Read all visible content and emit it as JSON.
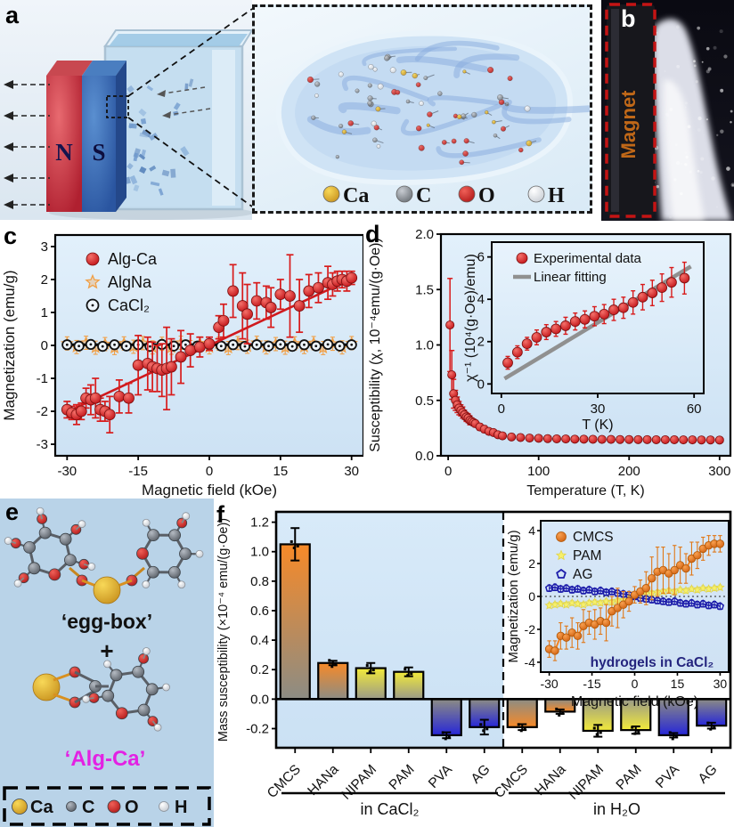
{
  "panels": {
    "a": "a",
    "b": "b",
    "c": "c",
    "d": "d",
    "e": "e",
    "f": "f"
  },
  "colors": {
    "red": "#e02020",
    "orange": "#f5831f",
    "star_orange": "#f0a048",
    "yellow": "#f0e83a",
    "pale_yellow": "#f6f06a",
    "blue": "#2a2ad8",
    "navy": "#1c1caa",
    "gray": "#8c8c84",
    "gold": "#e8b92e",
    "magenta": "#e321e3",
    "plot_bg_top": "#e2f0fb",
    "plot_bg_bottom": "#cde2f4",
    "panel_e_bg": "#b9d3e8",
    "magnet_text": "#c06818",
    "fit_gray": "#909090"
  },
  "panel_a": {
    "magnet_n": "N",
    "magnet_s": "S",
    "legend": [
      {
        "label": "Ca",
        "color": "#e8b92e"
      },
      {
        "label": "C",
        "color": "#8a8f96"
      },
      {
        "label": "O",
        "color": "#d42525"
      },
      {
        "label": "H",
        "color": "#ffffff"
      }
    ]
  },
  "panel_b": {
    "magnet_label": "Magnet"
  },
  "panel_e": {
    "egg_box": "‘egg-box’",
    "plus": "+",
    "alg_ca": "‘Alg-Ca’",
    "legend": [
      {
        "label": "Ca",
        "color": "#e8b92e"
      },
      {
        "label": "C",
        "color": "#8a8f96"
      },
      {
        "label": "O",
        "color": "#d42525"
      },
      {
        "label": "H",
        "color": "#ffffff"
      }
    ]
  },
  "chart_data": [
    {
      "id": "c",
      "type": "scatter",
      "xlabel": "Magnetic field (kOe)",
      "ylabel": "Magnetization (emu/g)",
      "xlim": [
        -32.5,
        32.5
      ],
      "ylim": [
        -3.35,
        3.35
      ],
      "xticks": [
        "-30",
        "-15",
        "0",
        "15",
        "30"
      ],
      "yticks": [
        "-3",
        "-2",
        "-1",
        "0",
        "1",
        "2",
        "3"
      ],
      "legend_position": "top-left",
      "series": [
        {
          "name": "Alg-Ca",
          "marker": "sphere",
          "color": "#e02020",
          "x": [
            -30,
            -29,
            -28,
            -27,
            -26,
            -25,
            -24,
            -23,
            -22,
            -21,
            -19,
            -17,
            -15,
            -13,
            -12,
            -11,
            -10,
            -9,
            -8,
            -6,
            -4,
            -2,
            0,
            2,
            3,
            5,
            7,
            8,
            10,
            12,
            13,
            15,
            17,
            19,
            21,
            23,
            25,
            26,
            27,
            28,
            29,
            30
          ],
          "y": [
            -1.95,
            -2.05,
            -2.1,
            -2.0,
            -1.6,
            -1.65,
            -1.6,
            -1.95,
            -2.0,
            -2.1,
            -1.55,
            -1.6,
            -0.6,
            -0.55,
            -0.65,
            -0.7,
            -0.75,
            -0.7,
            -0.65,
            -0.35,
            -0.15,
            -0.05,
            0.05,
            0.55,
            0.75,
            1.65,
            1.2,
            0.95,
            1.35,
            1.3,
            1.15,
            1.55,
            1.5,
            1.2,
            1.65,
            1.75,
            1.9,
            1.85,
            1.95,
            2.0,
            1.95,
            2.05
          ],
          "yerr": [
            0.25,
            0.2,
            0.3,
            0.25,
            0.3,
            0.45,
            0.6,
            0.35,
            0.3,
            0.55,
            0.5,
            0.45,
            0.9,
            0.8,
            0.75,
            0.7,
            0.8,
            1.25,
            0.85,
            0.8,
            0.5,
            0.3,
            0.2,
            0.35,
            0.5,
            0.8,
            1.0,
            0.9,
            0.55,
            0.5,
            0.6,
            0.45,
            1.25,
            0.8,
            0.5,
            0.45,
            0.5,
            0.35,
            0.3,
            0.25,
            0.3,
            0.2
          ],
          "fit": {
            "x": [
              -30,
              30
            ],
            "y": [
              -2.02,
              2.02
            ]
          }
        },
        {
          "name": "AlgNa",
          "marker": "star",
          "color": "#f0a048",
          "yerr_const": 0.2,
          "x": [
            -30,
            -28,
            -26,
            -24,
            -22,
            -20,
            -18,
            -16,
            -14,
            -12,
            -10,
            -8,
            -6,
            -4,
            -2,
            0,
            2,
            4,
            6,
            8,
            10,
            12,
            14,
            16,
            18,
            20,
            22,
            24,
            26,
            28,
            30
          ],
          "y": [
            0.06,
            -0.05,
            0.08,
            -0.07,
            0.04,
            -0.08,
            0.06,
            -0.04,
            0.07,
            -0.06,
            0.05,
            -0.07,
            0.08,
            -0.05,
            0.06,
            -0.06,
            0.05,
            -0.08,
            0.07,
            -0.04,
            0.08,
            -0.06,
            0.04,
            -0.07,
            0.06,
            -0.05,
            0.07,
            -0.08,
            0.05,
            -0.06,
            0.07
          ]
        },
        {
          "name": "CaCl₂",
          "marker": "circle-dot",
          "color": "#111111",
          "yerr_const": 0.12,
          "line_y": 0.02,
          "x": [
            -30,
            -27.5,
            -25,
            -22.5,
            -20,
            -17.5,
            -15,
            -12.5,
            -10,
            -7.5,
            -5,
            -2.5,
            0,
            2.5,
            5,
            7.5,
            10,
            12.5,
            15,
            17.5,
            20,
            22.5,
            25,
            27.5,
            30
          ],
          "y": [
            0.02,
            -0.02,
            0.03,
            -0.03,
            0.02,
            -0.02,
            0.02,
            -0.03,
            0.03,
            -0.02,
            0.02,
            -0.02,
            0.03,
            -0.02,
            0.02,
            -0.03,
            0.02,
            -0.02,
            0.03,
            -0.03,
            0.02,
            -0.02,
            0.03,
            -0.02,
            0.02
          ]
        }
      ]
    },
    {
      "id": "d",
      "type": "scatter",
      "xlabel": "Temperature (T, K)",
      "ylabel": "Susceptibility (χ, 10⁻⁴emu/(g·Oe))",
      "xlim": [
        -8,
        312
      ],
      "ylim": [
        0,
        2.0
      ],
      "xticks": [
        "0",
        "100",
        "200",
        "300"
      ],
      "yticks": [
        "0.0",
        "0.5",
        "1.0",
        "1.5",
        "2.0"
      ],
      "series": [
        {
          "name": "susceptibility",
          "marker": "sphere",
          "color": "#e02020",
          "x": [
            2,
            4,
            6,
            8,
            10,
            12,
            14,
            16,
            18,
            20,
            22,
            24,
            26,
            28,
            30,
            35,
            40,
            45,
            50,
            55,
            60,
            70,
            80,
            90,
            100,
            110,
            120,
            130,
            140,
            150,
            160,
            170,
            180,
            190,
            200,
            210,
            220,
            230,
            240,
            250,
            260,
            270,
            280,
            290,
            300
          ],
          "y": [
            1.18,
            0.73,
            0.56,
            0.5,
            0.46,
            0.43,
            0.41,
            0.39,
            0.37,
            0.35,
            0.34,
            0.32,
            0.31,
            0.3,
            0.29,
            0.26,
            0.24,
            0.22,
            0.21,
            0.19,
            0.18,
            0.17,
            0.165,
            0.16,
            0.158,
            0.155,
            0.153,
            0.152,
            0.15,
            0.15,
            0.149,
            0.148,
            0.148,
            0.147,
            0.147,
            0.146,
            0.146,
            0.145,
            0.145,
            0.145,
            0.144,
            0.144,
            0.143,
            0.143,
            0.142
          ],
          "yerr": [
            0.42,
            0.22,
            0.13,
            0.09,
            0.07,
            0.06,
            0.05,
            0.05,
            0.04,
            0.04,
            0.04,
            0.04,
            0.03,
            0.03,
            0.03,
            0.03,
            0.03,
            0.02,
            0.02,
            0.02,
            0.02,
            0.02,
            0.02,
            0.02,
            0.02,
            0.02,
            0.02,
            0.02,
            0.02,
            0.02,
            0.02,
            0.02,
            0.02,
            0.02,
            0.02,
            0.02,
            0.02,
            0.02,
            0.02,
            0.02,
            0.02,
            0.02,
            0.02,
            0.02,
            0.02
          ]
        }
      ]
    },
    {
      "id": "d-inset",
      "type": "scatter",
      "xlabel": "T (K)",
      "ylabel": "χ⁻¹ (10⁴(g·Oe)/emu)",
      "xlim": [
        -3,
        63
      ],
      "ylim": [
        -0.45,
        6.7
      ],
      "xticks": [
        "0",
        "30",
        "60"
      ],
      "yticks": [
        "0",
        "2",
        "4",
        "6"
      ],
      "legend": [
        {
          "label": "Experimental data",
          "marker": "sphere",
          "color": "#e02020"
        },
        {
          "label": "Linear fitting",
          "marker": "line",
          "color": "#909090"
        }
      ],
      "series": [
        {
          "name": "Experimental data",
          "marker": "sphere",
          "color": "#e02020",
          "x": [
            2,
            5,
            8,
            11,
            14,
            17,
            20,
            23,
            26,
            29,
            32,
            35,
            38,
            41,
            44,
            47,
            50,
            53,
            57
          ],
          "y": [
            1.0,
            1.5,
            1.9,
            2.2,
            2.45,
            2.6,
            2.75,
            2.95,
            3.05,
            3.2,
            3.3,
            3.5,
            3.6,
            3.85,
            4.1,
            4.3,
            4.55,
            4.8,
            5.0
          ],
          "yerr": [
            0.3,
            0.3,
            0.3,
            0.35,
            0.35,
            0.35,
            0.4,
            0.4,
            0.4,
            0.45,
            0.45,
            0.5,
            0.5,
            0.55,
            0.6,
            0.6,
            0.65,
            0.7,
            0.75
          ]
        },
        {
          "name": "Linear fitting",
          "marker": "none",
          "color": "#909090",
          "fit": {
            "x": [
              1,
              59
            ],
            "y": [
              0.25,
              5.55
            ]
          }
        }
      ]
    },
    {
      "id": "f",
      "type": "bar",
      "ylabel": "Mass susceptibility (×10⁻⁴ emu/(g·Oe))",
      "ylim": [
        -0.33,
        1.27
      ],
      "yticks": [
        "-0.2",
        "0.0",
        "0.2",
        "0.4",
        "0.6",
        "0.8",
        "1.0",
        "1.2"
      ],
      "categories": [
        "CMCS",
        "HANa",
        "NIPAM",
        "PAM",
        "PVA",
        "AG",
        "CMCS",
        "HANa",
        "NIPAM",
        "PAM",
        "PVA",
        "AG"
      ],
      "values": [
        1.05,
        0.245,
        0.21,
        0.185,
        -0.245,
        -0.19,
        -0.19,
        -0.085,
        -0.215,
        -0.21,
        -0.245,
        -0.18
      ],
      "errors": [
        0.11,
        0.015,
        0.035,
        0.03,
        0.02,
        0.05,
        0.02,
        0.015,
        0.04,
        0.025,
        0.015,
        0.02
      ],
      "bar_colors": [
        "orange",
        "orange",
        "yellow",
        "yellow",
        "blue",
        "blue",
        "orange",
        "orange",
        "yellow",
        "yellow",
        "blue",
        "blue"
      ],
      "groups": [
        {
          "label": "in CaCl₂",
          "from": 0,
          "to": 5
        },
        {
          "label": "in H₂O",
          "from": 6,
          "to": 11
        }
      ]
    },
    {
      "id": "f-inset",
      "type": "scatter",
      "xlabel": "Magnetic field (kOe)",
      "ylabel": "Magnetization (emu/g)",
      "xlim": [
        -33,
        33
      ],
      "ylim": [
        -4.6,
        4.6
      ],
      "xticks": [
        "-30",
        "-15",
        "0",
        "15",
        "30"
      ],
      "yticks": [
        "-4",
        "-2",
        "0",
        "2",
        "4"
      ],
      "note": "hydrogels in CaCl₂",
      "x": [
        -30,
        -28,
        -26,
        -24,
        -22,
        -20,
        -18,
        -16,
        -14,
        -12,
        -10,
        -8,
        -6,
        -4,
        -2,
        0,
        2,
        4,
        6,
        8,
        10,
        12,
        14,
        16,
        18,
        20,
        22,
        24,
        26,
        28,
        30
      ],
      "series": [
        {
          "name": "CMCS",
          "marker": "sphere",
          "color": "#f5831f",
          "y": [
            -3.2,
            -3.3,
            -2.4,
            -2.5,
            -2.2,
            -2.4,
            -1.8,
            -1.6,
            -1.7,
            -1.5,
            -1.6,
            -0.9,
            -0.7,
            -0.5,
            -0.3,
            0.1,
            0.3,
            0.5,
            1.1,
            1.5,
            1.6,
            1.4,
            1.6,
            1.9,
            1.7,
            2.3,
            2.5,
            2.9,
            3.1,
            3.2,
            3.2
          ],
          "yerr": [
            0.5,
            0.6,
            0.8,
            0.7,
            0.9,
            0.8,
            1.0,
            0.7,
            0.9,
            0.8,
            1.1,
            0.9,
            1.2,
            0.8,
            0.6,
            0.5,
            0.7,
            1.0,
            1.3,
            1.5,
            1.4,
            1.2,
            1.5,
            1.1,
            0.9,
            1.0,
            0.8,
            0.7,
            0.6,
            0.5,
            0.5
          ]
        },
        {
          "name": "PAM",
          "marker": "star",
          "color": "#f6f06a",
          "yerr_const": 0.15,
          "y": [
            -0.55,
            -0.5,
            -0.45,
            -0.5,
            -0.4,
            -0.45,
            -0.5,
            -0.4,
            -0.35,
            -0.4,
            -0.3,
            -0.35,
            -0.25,
            -0.2,
            -0.1,
            0.0,
            0.1,
            0.15,
            0.2,
            0.25,
            0.3,
            0.35,
            0.3,
            0.4,
            0.35,
            0.45,
            0.4,
            0.5,
            0.45,
            0.5,
            0.55
          ]
        },
        {
          "name": "AG",
          "marker": "pentagon",
          "color": "#1c1caa",
          "yerr_const": 0.2,
          "y": [
            0.5,
            0.55,
            0.45,
            0.5,
            0.4,
            0.45,
            0.35,
            0.4,
            0.3,
            0.35,
            0.25,
            0.3,
            0.2,
            0.15,
            0.1,
            0.0,
            -0.1,
            -0.15,
            -0.2,
            -0.25,
            -0.3,
            -0.35,
            -0.3,
            -0.4,
            -0.45,
            -0.4,
            -0.5,
            -0.45,
            -0.55,
            -0.5,
            -0.6
          ]
        }
      ]
    }
  ]
}
